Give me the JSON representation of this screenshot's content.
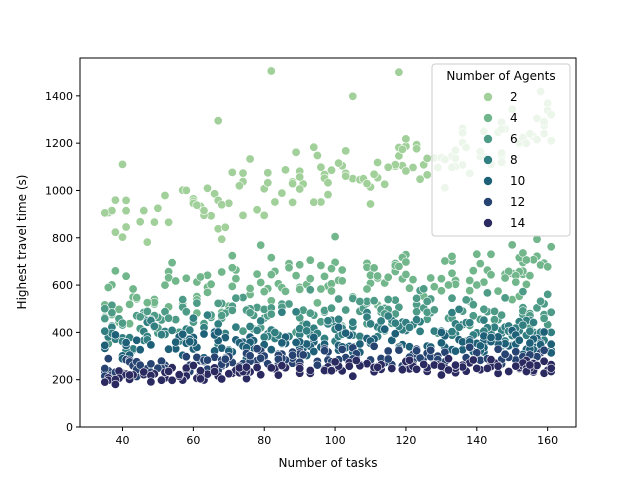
{
  "chart_data": {
    "type": "scatter",
    "xlabel": "Number of tasks",
    "ylabel": "Highest travel time (s)",
    "xlim": [
      28,
      168
    ],
    "ylim": [
      0,
      1560
    ],
    "xticks": [
      40,
      60,
      80,
      100,
      120,
      140,
      160
    ],
    "yticks": [
      0,
      200,
      400,
      600,
      800,
      1000,
      1200,
      1400
    ],
    "grid": false,
    "legend": {
      "title": "Number of Agents",
      "placement": "top-right"
    },
    "series": [
      {
        "name": "2",
        "color": "#a1d09a",
        "x_range": [
          35,
          161
        ],
        "baseline": [
          [
            35,
            850
          ],
          [
            60,
            910
          ],
          [
            80,
            1000
          ],
          [
            100,
            1040
          ],
          [
            120,
            1120
          ],
          [
            140,
            1190
          ],
          [
            161,
            1280
          ]
        ],
        "spread": 110,
        "count": 140,
        "highlights": [
          [
            82,
            1505
          ],
          [
            118,
            1500
          ],
          [
            105,
            1398
          ],
          [
            40,
            1110
          ],
          [
            67,
            1295
          ],
          [
            35,
            905
          ],
          [
            161,
            1320
          ],
          [
            155,
            1240
          ]
        ]
      },
      {
        "name": "4",
        "color": "#72b68c",
        "x_range": [
          35,
          161
        ],
        "baseline": [
          [
            35,
            560
          ],
          [
            60,
            580
          ],
          [
            80,
            620
          ],
          [
            100,
            630
          ],
          [
            120,
            650
          ],
          [
            140,
            660
          ],
          [
            161,
            680
          ]
        ],
        "spread": 95,
        "count": 150,
        "highlights": [
          [
            100,
            805
          ],
          [
            150,
            770
          ],
          [
            161,
            762
          ],
          [
            155,
            640
          ],
          [
            38,
            660
          ]
        ]
      },
      {
        "name": "6",
        "color": "#4e9c87",
        "x_range": [
          35,
          161
        ],
        "baseline": [
          [
            35,
            440
          ],
          [
            60,
            470
          ],
          [
            80,
            480
          ],
          [
            100,
            490
          ],
          [
            120,
            500
          ],
          [
            140,
            505
          ],
          [
            161,
            490
          ]
        ],
        "spread": 70,
        "count": 150,
        "highlights": [
          [
            161,
            485
          ],
          [
            155,
            470
          ],
          [
            35,
            500
          ]
        ]
      },
      {
        "name": "8",
        "color": "#317f81",
        "x_range": [
          35,
          161
        ],
        "baseline": [
          [
            35,
            370
          ],
          [
            60,
            390
          ],
          [
            80,
            400
          ],
          [
            100,
            410
          ],
          [
            120,
            420
          ],
          [
            140,
            420
          ],
          [
            161,
            400
          ]
        ],
        "spread": 55,
        "count": 150,
        "highlights": [
          [
            161,
            400
          ],
          [
            155,
            405
          ],
          [
            35,
            405
          ]
        ]
      },
      {
        "name": "10",
        "color": "#1f6079",
        "x_range": [
          35,
          161
        ],
        "baseline": [
          [
            35,
            320
          ],
          [
            60,
            340
          ],
          [
            80,
            345
          ],
          [
            100,
            355
          ],
          [
            120,
            360
          ],
          [
            140,
            360
          ],
          [
            161,
            350
          ]
        ],
        "spread": 45,
        "count": 150,
        "highlights": [
          [
            161,
            350
          ],
          [
            155,
            355
          ],
          [
            35,
            345
          ]
        ]
      },
      {
        "name": "12",
        "color": "#274371",
        "x_range": [
          35,
          161
        ],
        "baseline": [
          [
            35,
            250
          ],
          [
            60,
            270
          ],
          [
            80,
            285
          ],
          [
            100,
            295
          ],
          [
            120,
            300
          ],
          [
            140,
            300
          ],
          [
            161,
            290
          ]
        ],
        "spread": 35,
        "count": 150,
        "highlights": [
          [
            155,
            305
          ],
          [
            35,
            215
          ]
        ]
      },
      {
        "name": "14",
        "color": "#2b2a60",
        "x_range": [
          35,
          161
        ],
        "baseline": [
          [
            35,
            205
          ],
          [
            60,
            225
          ],
          [
            80,
            240
          ],
          [
            100,
            250
          ],
          [
            120,
            255
          ],
          [
            140,
            260
          ],
          [
            161,
            250
          ]
        ],
        "spread": 30,
        "count": 150,
        "highlights": [
          [
            161,
            248
          ],
          [
            155,
            262
          ],
          [
            35,
            190
          ],
          [
            38,
            180
          ]
        ]
      }
    ]
  }
}
